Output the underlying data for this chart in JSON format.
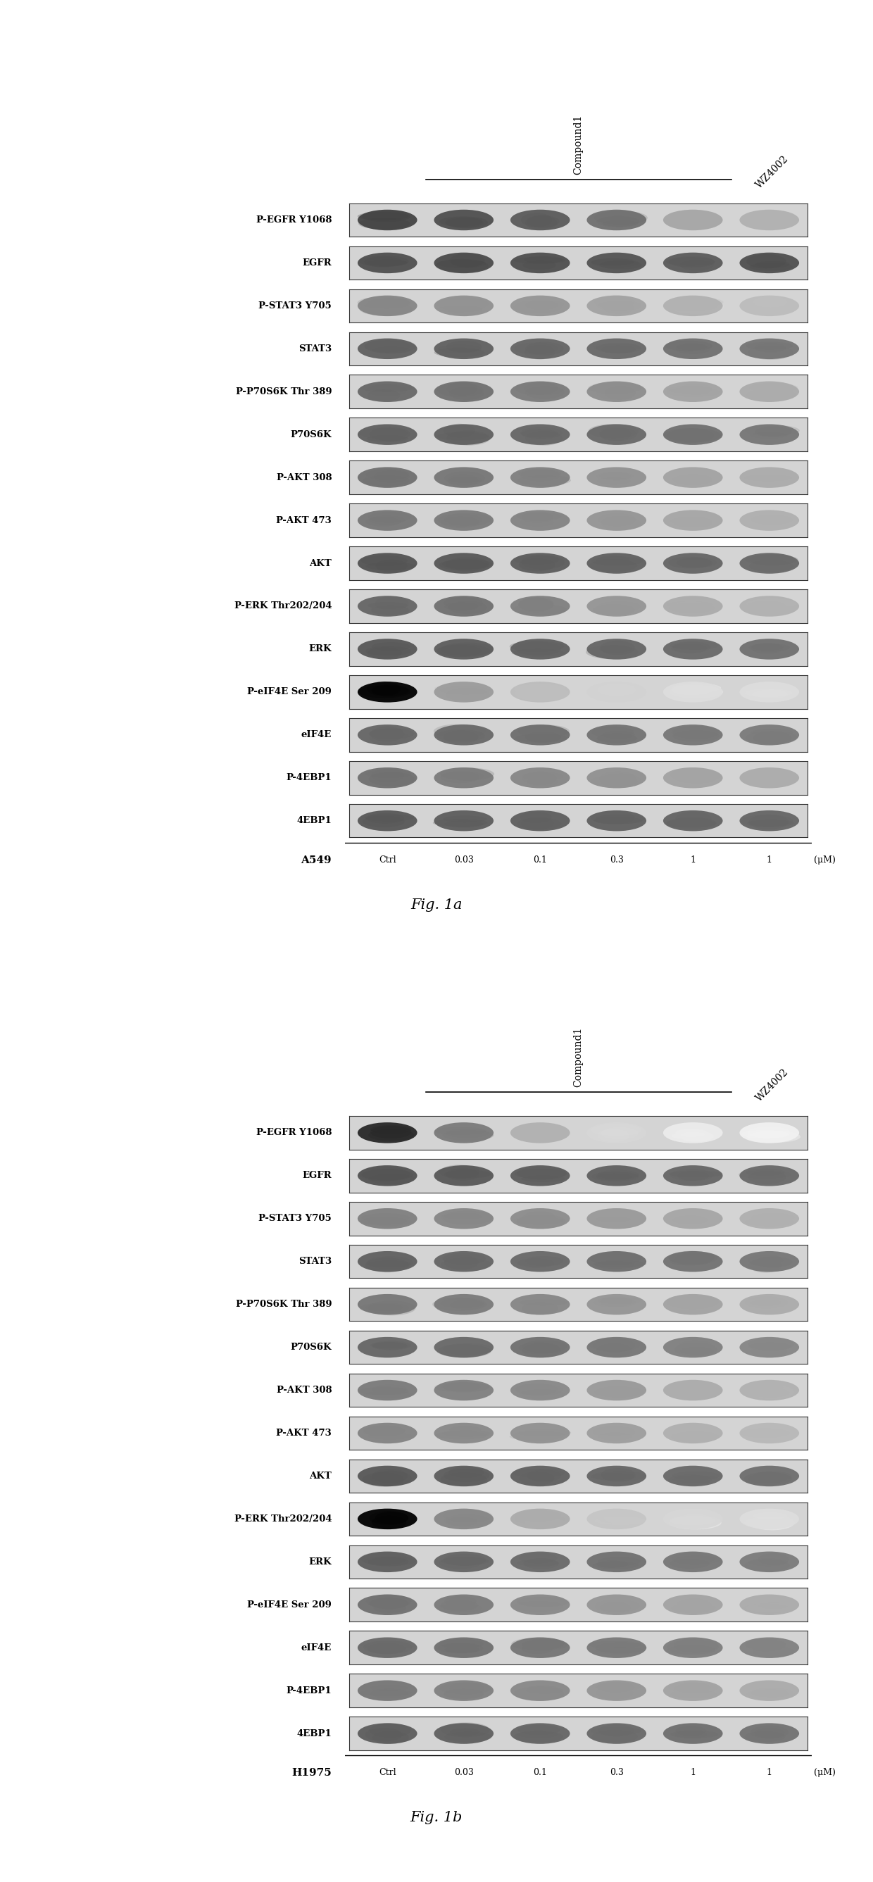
{
  "fig_width": 12.4,
  "fig_height": 26.73,
  "background_color": "#ffffff",
  "panels": [
    {
      "cell_line": "A549",
      "fig_label": "Fig. 1a",
      "rows": [
        "P-EGFR Y1068",
        "EGFR",
        "P-STAT3 Y705",
        "STAT3",
        "P-P70S6K Thr 389",
        "P70S6K",
        "P-AKT 308",
        "P-AKT 473",
        "AKT",
        "P-ERK Thr202/204",
        "ERK",
        "P-eIF4E Ser 209",
        "eIF4E",
        "P-4EBP1",
        "4EBP1"
      ],
      "concentrations": [
        "Ctrl",
        "0.03",
        "0.1",
        "0.3",
        "1",
        "1"
      ],
      "unit": "(μM)",
      "band_intensities": [
        [
          0.85,
          0.8,
          0.75,
          0.65,
          0.4,
          0.35
        ],
        [
          0.8,
          0.82,
          0.8,
          0.78,
          0.75,
          0.8
        ],
        [
          0.55,
          0.5,
          0.48,
          0.42,
          0.35,
          0.3
        ],
        [
          0.72,
          0.72,
          0.7,
          0.68,
          0.65,
          0.63
        ],
        [
          0.68,
          0.65,
          0.6,
          0.52,
          0.42,
          0.38
        ],
        [
          0.72,
          0.72,
          0.7,
          0.68,
          0.65,
          0.62
        ],
        [
          0.65,
          0.62,
          0.58,
          0.5,
          0.42,
          0.38
        ],
        [
          0.62,
          0.6,
          0.56,
          0.48,
          0.4,
          0.36
        ],
        [
          0.78,
          0.76,
          0.74,
          0.72,
          0.7,
          0.68
        ],
        [
          0.7,
          0.65,
          0.58,
          0.48,
          0.38,
          0.35
        ],
        [
          0.76,
          0.74,
          0.72,
          0.7,
          0.68,
          0.65
        ],
        [
          0.82,
          0.45,
          0.3,
          0.2,
          0.15,
          0.15
        ],
        [
          0.7,
          0.68,
          0.66,
          0.64,
          0.62,
          0.6
        ],
        [
          0.65,
          0.6,
          0.55,
          0.5,
          0.42,
          0.38
        ],
        [
          0.76,
          0.74,
          0.73,
          0.72,
          0.71,
          0.7
        ]
      ],
      "special_black": [
        [
          11,
          0
        ]
      ]
    },
    {
      "cell_line": "H1975",
      "fig_label": "Fig. 1b",
      "rows": [
        "P-EGFR Y1068",
        "EGFR",
        "P-STAT3 Y705",
        "STAT3",
        "P-P70S6K Thr 389",
        "P70S6K",
        "P-AKT 308",
        "P-AKT 473",
        "AKT",
        "P-ERK Thr202/204",
        "ERK",
        "P-eIF4E Ser 209",
        "eIF4E",
        "P-4EBP1",
        "4EBP1"
      ],
      "concentrations": [
        "Ctrl",
        "0.03",
        "0.1",
        "0.3",
        "1",
        "1"
      ],
      "unit": "(μM)",
      "band_intensities": [
        [
          0.98,
          0.6,
          0.35,
          0.18,
          0.08,
          0.06
        ],
        [
          0.78,
          0.76,
          0.74,
          0.72,
          0.7,
          0.68
        ],
        [
          0.58,
          0.55,
          0.52,
          0.46,
          0.4,
          0.36
        ],
        [
          0.72,
          0.7,
          0.68,
          0.66,
          0.64,
          0.62
        ],
        [
          0.62,
          0.6,
          0.55,
          0.48,
          0.42,
          0.38
        ],
        [
          0.7,
          0.68,
          0.65,
          0.62,
          0.58,
          0.55
        ],
        [
          0.6,
          0.58,
          0.54,
          0.46,
          0.38,
          0.35
        ],
        [
          0.56,
          0.54,
          0.5,
          0.44,
          0.36,
          0.32
        ],
        [
          0.76,
          0.74,
          0.72,
          0.7,
          0.68,
          0.66
        ],
        [
          0.95,
          0.55,
          0.38,
          0.26,
          0.18,
          0.15
        ],
        [
          0.73,
          0.7,
          0.68,
          0.65,
          0.62,
          0.6
        ],
        [
          0.65,
          0.6,
          0.54,
          0.48,
          0.42,
          0.38
        ],
        [
          0.68,
          0.65,
          0.63,
          0.61,
          0.59,
          0.57
        ],
        [
          0.62,
          0.58,
          0.54,
          0.48,
          0.42,
          0.38
        ],
        [
          0.74,
          0.72,
          0.7,
          0.68,
          0.66,
          0.64
        ]
      ],
      "special_black": [
        [
          9,
          0
        ]
      ]
    }
  ]
}
